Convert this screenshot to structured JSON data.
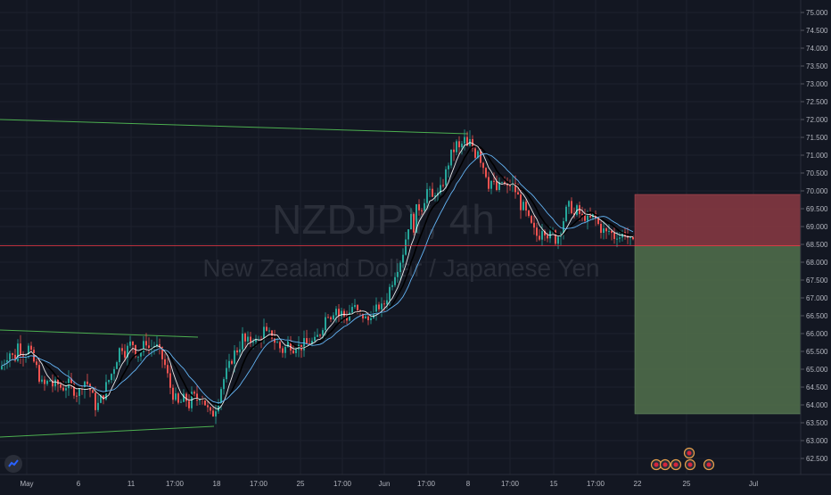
{
  "chart_data": {
    "type": "candlestick",
    "symbol": "NZDJPY",
    "interval": "4h",
    "description": "New Zealand Dollar / Japanese Yen",
    "current_price": "68.459",
    "y_ticks": [
      "75.000",
      "74.500",
      "74.000",
      "73.500",
      "73.000",
      "72.500",
      "72.000",
      "71.500",
      "71.000",
      "70.500",
      "70.000",
      "69.500",
      "69.000",
      "68.500",
      "68.000",
      "67.500",
      "67.000",
      "66.500",
      "66.000",
      "65.500",
      "65.000",
      "64.500",
      "64.000",
      "63.500",
      "63.000",
      "62.500"
    ],
    "ylim": [
      62.2,
      75.2
    ],
    "x_ticks": [
      "May",
      "6",
      "11",
      "17:00",
      "18",
      "17:00",
      "25",
      "17:00",
      "Jun",
      "17:00",
      "8",
      "17:00",
      "15",
      "17:00",
      "22",
      "25",
      "Jul"
    ],
    "close_path": [
      [
        0,
        65.0
      ],
      [
        4,
        65.2
      ],
      [
        8,
        65.4
      ],
      [
        12,
        65.5
      ],
      [
        16,
        65.2
      ],
      [
        20,
        65.7
      ],
      [
        24,
        65.5
      ],
      [
        28,
        65.4
      ],
      [
        32,
        65.6
      ],
      [
        36,
        65.3
      ],
      [
        40,
        65.1
      ],
      [
        44,
        64.8
      ],
      [
        48,
        64.5
      ],
      [
        52,
        64.6
      ],
      [
        56,
        64.7
      ],
      [
        60,
        64.5
      ],
      [
        64,
        64.6
      ],
      [
        68,
        64.5
      ],
      [
        72,
        64.5
      ],
      [
        76,
        64.6
      ],
      [
        80,
        64.5
      ],
      [
        84,
        64.4
      ],
      [
        88,
        64.3
      ],
      [
        92,
        64.6
      ],
      [
        96,
        64.7
      ],
      [
        100,
        64.5
      ],
      [
        104,
        64.2
      ],
      [
        108,
        63.9
      ],
      [
        112,
        64.1
      ],
      [
        116,
        64.3
      ],
      [
        120,
        64.6
      ],
      [
        124,
        64.8
      ],
      [
        128,
        65.1
      ],
      [
        132,
        65.4
      ],
      [
        136,
        65.7
      ],
      [
        140,
        65.5
      ],
      [
        144,
        65.6
      ],
      [
        148,
        65.8
      ],
      [
        152,
        65.5
      ],
      [
        156,
        65.4
      ],
      [
        160,
        65.6
      ],
      [
        164,
        65.8
      ],
      [
        168,
        65.5
      ],
      [
        172,
        65.7
      ],
      [
        176,
        65.6
      ],
      [
        180,
        65.4
      ],
      [
        184,
        65.2
      ],
      [
        188,
        64.8
      ],
      [
        192,
        64.4
      ],
      [
        196,
        64.2
      ],
      [
        200,
        64.0
      ],
      [
        204,
        64.1
      ],
      [
        208,
        64.2
      ],
      [
        212,
        64.0
      ],
      [
        216,
        64.3
      ],
      [
        220,
        64.1
      ],
      [
        224,
        64.3
      ],
      [
        228,
        64.2
      ],
      [
        232,
        63.9
      ],
      [
        236,
        63.7
      ],
      [
        240,
        63.8
      ],
      [
        244,
        64.1
      ],
      [
        248,
        64.5
      ],
      [
        252,
        64.8
      ],
      [
        256,
        65.0
      ],
      [
        260,
        65.3
      ],
      [
        264,
        65.5
      ],
      [
        268,
        65.6
      ],
      [
        272,
        65.9
      ],
      [
        276,
        65.7
      ],
      [
        280,
        65.8
      ],
      [
        284,
        65.9
      ],
      [
        288,
        65.7
      ],
      [
        292,
        65.9
      ],
      [
        296,
        66.1
      ],
      [
        300,
        65.9
      ],
      [
        304,
        66.0
      ],
      [
        308,
        65.8
      ],
      [
        312,
        65.7
      ],
      [
        316,
        65.5
      ],
      [
        320,
        65.6
      ],
      [
        324,
        65.8
      ],
      [
        328,
        65.6
      ],
      [
        332,
        65.7
      ],
      [
        336,
        65.6
      ],
      [
        340,
        65.7
      ],
      [
        344,
        65.7
      ],
      [
        348,
        65.8
      ],
      [
        352,
        65.7
      ],
      [
        356,
        65.9
      ],
      [
        360,
        66.1
      ],
      [
        364,
        66.4
      ],
      [
        368,
        66.6
      ],
      [
        372,
        66.5
      ],
      [
        376,
        66.8
      ],
      [
        380,
        66.5
      ],
      [
        384,
        66.6
      ],
      [
        388,
        66.4
      ],
      [
        392,
        66.6
      ],
      [
        396,
        66.8
      ],
      [
        400,
        66.6
      ],
      [
        404,
        66.5
      ],
      [
        408,
        66.5
      ],
      [
        412,
        66.3
      ],
      [
        416,
        66.6
      ],
      [
        420,
        66.5
      ],
      [
        424,
        66.8
      ],
      [
        428,
        66.7
      ],
      [
        432,
        66.9
      ],
      [
        436,
        67.2
      ],
      [
        440,
        67.5
      ],
      [
        444,
        67.8
      ],
      [
        448,
        68.0
      ],
      [
        452,
        68.3
      ],
      [
        456,
        68.8
      ],
      [
        460,
        69.3
      ],
      [
        464,
        69.0
      ],
      [
        468,
        69.6
      ],
      [
        472,
        69.5
      ],
      [
        476,
        69.8
      ],
      [
        480,
        70.1
      ],
      [
        484,
        69.7
      ],
      [
        488,
        70.0
      ],
      [
        492,
        69.8
      ],
      [
        496,
        70.2
      ],
      [
        500,
        70.5
      ],
      [
        504,
        70.9
      ],
      [
        508,
        71.1
      ],
      [
        512,
        71.3
      ],
      [
        516,
        71.1
      ],
      [
        520,
        71.5
      ],
      [
        524,
        71.2
      ],
      [
        528,
        71.4
      ],
      [
        532,
        71.0
      ],
      [
        536,
        71.2
      ],
      [
        540,
        70.8
      ],
      [
        544,
        70.6
      ],
      [
        548,
        70.2
      ],
      [
        552,
        70.3
      ],
      [
        556,
        70.0
      ],
      [
        560,
        70.1
      ],
      [
        564,
        70.3
      ],
      [
        568,
        70.0
      ],
      [
        572,
        70.2
      ],
      [
        576,
        70.1
      ],
      [
        580,
        69.9
      ],
      [
        584,
        69.6
      ],
      [
        588,
        69.5
      ],
      [
        592,
        69.2
      ],
      [
        596,
        69.0
      ],
      [
        600,
        68.8
      ],
      [
        604,
        68.7
      ],
      [
        608,
        69.0
      ],
      [
        612,
        68.9
      ],
      [
        616,
        68.7
      ],
      [
        620,
        68.8
      ],
      [
        624,
        68.6
      ],
      [
        628,
        68.9
      ],
      [
        632,
        69.2
      ],
      [
        636,
        69.5
      ],
      [
        640,
        69.6
      ],
      [
        644,
        69.3
      ],
      [
        648,
        69.5
      ],
      [
        652,
        69.2
      ],
      [
        656,
        69.3
      ],
      [
        660,
        69.1
      ],
      [
        664,
        69.3
      ],
      [
        668,
        69.2
      ],
      [
        672,
        69.0
      ],
      [
        676,
        68.9
      ],
      [
        680,
        68.8
      ],
      [
        684,
        68.9
      ],
      [
        688,
        68.7
      ],
      [
        692,
        68.8
      ],
      [
        696,
        68.7
      ],
      [
        700,
        68.9
      ],
      [
        704,
        68.7
      ],
      [
        708,
        68.5
      ],
      [
        712,
        68.46
      ]
    ],
    "trendlines": [
      [
        [
          0,
          72.0
        ],
        [
          525,
          71.6
        ]
      ],
      [
        [
          0,
          66.1
        ],
        [
          222,
          65.9
        ]
      ],
      [
        [
          0,
          63.1
        ],
        [
          240,
          63.4
        ]
      ]
    ],
    "position": {
      "entry": 68.459,
      "stop": 69.9,
      "target": 63.75
    },
    "colors": {
      "background": "#131722",
      "up": "#26a69a",
      "down": "#ef5350",
      "ma_fast": "#ffffff",
      "ma_slow": "#64b5f6",
      "ma_black": "#000000",
      "trendline": "#4caf50",
      "price_line": "#f23645",
      "stop_zone": "#8b3a43",
      "target_zone": "#4f6b4a",
      "axis_text": "#b2b5be",
      "watermark": "#2a2e39"
    }
  }
}
